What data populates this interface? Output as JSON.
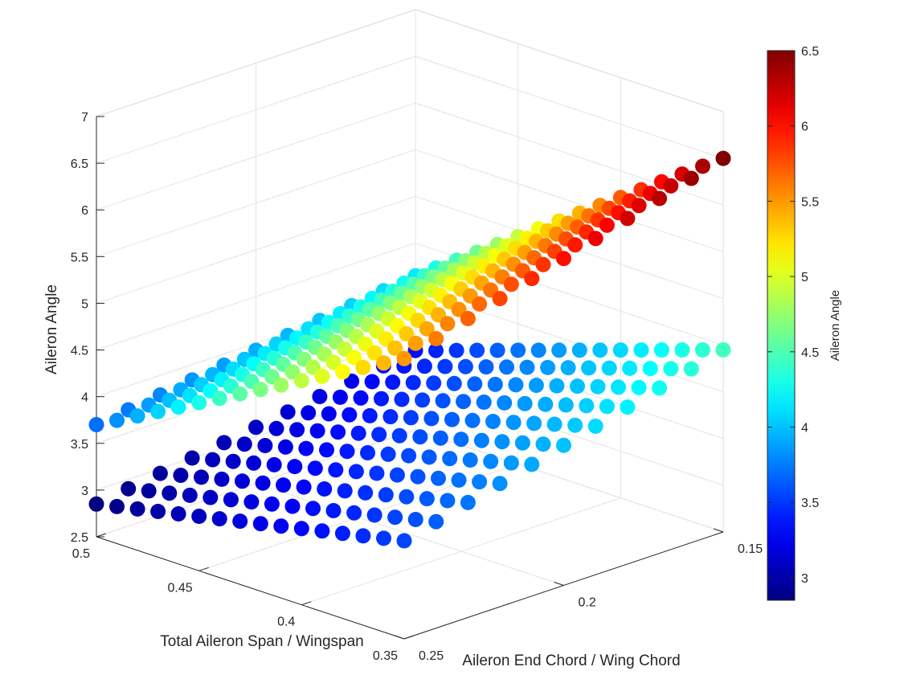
{
  "chart_data": {
    "type": "scatter",
    "projection": "3d",
    "title": "",
    "xlabel": "Aileron End Chord / Wing Chord",
    "ylabel": "Total Aileron Span / Wingspan",
    "zlabel": "Aileron Angle",
    "xlim": [
      0.15,
      0.25
    ],
    "ylim": [
      0.35,
      0.5
    ],
    "zlim": [
      2.5,
      7
    ],
    "xticks": [
      "0.15",
      "0.2",
      "0.25"
    ],
    "yticks": [
      "0.35",
      "0.4",
      "0.45",
      "0.5"
    ],
    "zticks": [
      "2.5",
      "3",
      "3.5",
      "4",
      "4.5",
      "5",
      "5.5",
      "6",
      "6.5",
      "7"
    ],
    "grid": true,
    "colormap": "jet",
    "color_by": "Aileron Angle",
    "colorbar": {
      "label": "Aileron Angle",
      "range": [
        2.85,
        6.5
      ],
      "ticks": [
        "3",
        "3.5",
        "4",
        "4.5",
        "5",
        "5.5",
        "6",
        "6.5"
      ]
    },
    "series": [
      {
        "surface": "upper",
        "x_range": [
          0.15,
          0.25
        ],
        "y_range": [
          0.35,
          0.5
        ],
        "z_corners": {
          "x0.25_y0.5": 3.7,
          "x0.15_y0.5": 4.15,
          "x0.25_y0.35": 5.5,
          "x0.15_y0.35": 6.5
        },
        "grid_size": [
          11,
          16
        ]
      },
      {
        "surface": "lower",
        "x_range": [
          0.15,
          0.25
        ],
        "y_range": [
          0.35,
          0.5
        ],
        "z_corners": {
          "x0.25_y0.5": 2.85,
          "x0.15_y0.5": 3.35,
          "x0.25_y0.35": 3.55,
          "x0.15_y0.35": 4.45
        },
        "grid_size": [
          11,
          16
        ]
      }
    ]
  }
}
